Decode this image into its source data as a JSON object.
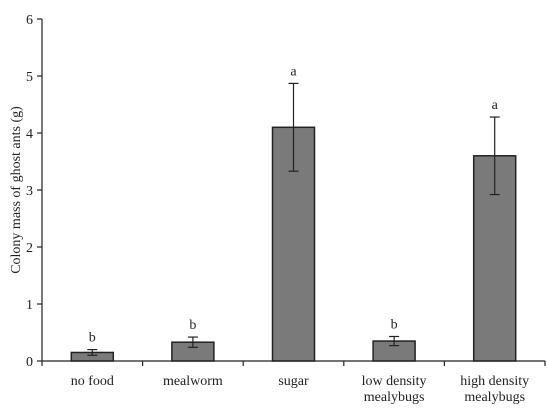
{
  "chart_data": {
    "type": "bar",
    "ylabel": "Colony mass of ghost ants (g)",
    "xlabel": "",
    "ylim": [
      0,
      6
    ],
    "yticks": [
      0,
      1,
      2,
      3,
      4,
      5,
      6
    ],
    "categories": [
      [
        "no food"
      ],
      [
        "mealworm"
      ],
      [
        "sugar"
      ],
      [
        "low density",
        "mealybugs"
      ],
      [
        "high density",
        "mealybugs"
      ]
    ],
    "values": [
      0.15,
      0.33,
      4.1,
      0.35,
      3.6
    ],
    "errors": [
      0.05,
      0.09,
      0.77,
      0.08,
      0.68
    ],
    "significance": [
      "b",
      "b",
      "a",
      "b",
      "a"
    ],
    "bar_color": "#7a7a7a",
    "bar_edge_color": "#222222",
    "grid": false
  }
}
